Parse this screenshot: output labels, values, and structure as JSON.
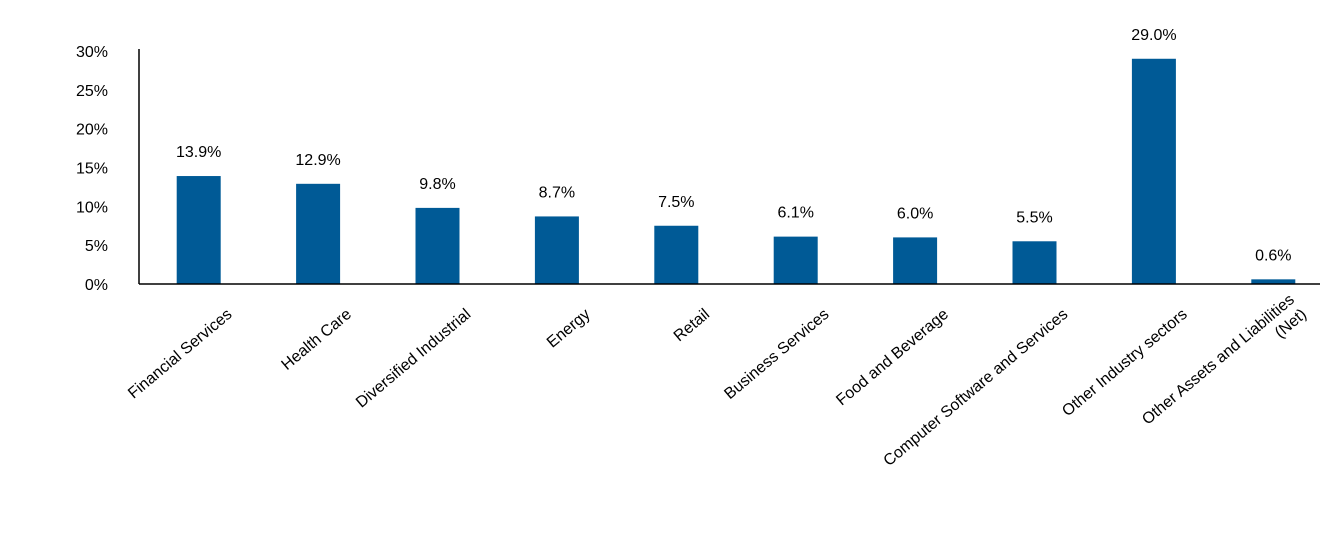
{
  "chart_data": {
    "type": "bar",
    "categories": [
      [
        "Financial Services"
      ],
      [
        "Health Care"
      ],
      [
        "Diversified Industrial"
      ],
      [
        "Energy"
      ],
      [
        "Retail"
      ],
      [
        "Business Services"
      ],
      [
        "Food and Beverage"
      ],
      [
        "Computer Software and Services"
      ],
      [
        "Other Industry sectors"
      ],
      [
        "Other Assets and Liabilities",
        "(Net)"
      ]
    ],
    "values": [
      13.9,
      12.9,
      9.8,
      8.7,
      7.5,
      6.1,
      6.0,
      5.5,
      29.0,
      0.6
    ],
    "data_labels": [
      "13.9%",
      "12.9%",
      "9.8%",
      "8.7%",
      "7.5%",
      "6.1%",
      "6.0%",
      "5.5%",
      "29.0%",
      "0.6%"
    ],
    "yticks": [
      0,
      5,
      10,
      15,
      20,
      25,
      30
    ],
    "ytick_labels": [
      "0%",
      "5%",
      "10%",
      "15%",
      "20%",
      "25%",
      "30%"
    ],
    "ylim": [
      0,
      30
    ],
    "grid": false,
    "bar_color": "#005a96",
    "title": "",
    "xlabel": "",
    "ylabel": ""
  }
}
